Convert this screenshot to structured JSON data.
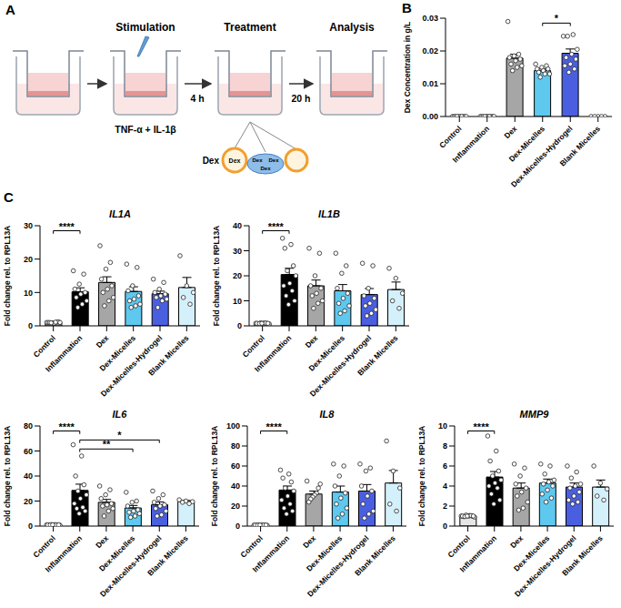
{
  "panel_letters": [
    "A",
    "B",
    "C"
  ],
  "diagram": {
    "steps": [
      "Stimulation",
      "Treatment",
      "Analysis"
    ],
    "stimulus": "TNF-α + IL-1β",
    "durations": [
      "4 h",
      "20 h"
    ],
    "treatments": {
      "free_drug": "Dex",
      "micelle_label": "Dex",
      "hydrogel_labels": [
        "Dex",
        "Dex",
        "Dex"
      ]
    }
  },
  "chart_data": [
    {
      "type": "bar",
      "y_label": "Dex Concentration in g/L",
      "categories": [
        "Control",
        "Inflammation",
        "Dex",
        "Dex-Micelles",
        "Dex-Micelles-Hydrogel",
        "Blank Micelles"
      ],
      "values": [
        0,
        0,
        0.0178,
        0.014,
        0.0193,
        0
      ],
      "errors": [
        0,
        0,
        0.0012,
        0.0005,
        0.0013,
        0
      ],
      "points": [
        [
          0,
          0,
          0,
          0,
          0,
          0,
          0,
          0,
          0,
          0
        ],
        [
          0,
          0,
          0,
          0,
          0,
          0,
          0,
          0,
          0,
          0
        ],
        [
          0.029,
          0.019,
          0.0185,
          0.018,
          0.0175,
          0.017,
          0.016,
          0.0155,
          0.015,
          0.014
        ],
        [
          0.016,
          0.0155,
          0.015,
          0.0145,
          0.0145,
          0.014,
          0.0135,
          0.013,
          0.013,
          0.012
        ],
        [
          0.0245,
          0.025,
          0.0245,
          0.0205,
          0.019,
          0.018,
          0.0175,
          0.016,
          0.0155,
          0.0145,
          0.0135
        ],
        [
          0,
          0,
          0,
          0,
          0
        ]
      ],
      "colors": [
        "#e6e6e6",
        "#000000",
        "#a6a6a6",
        "#5ec8ef",
        "#4a5fe0",
        "#d3f0fb"
      ],
      "ylim": [
        0,
        0.03
      ],
      "yticks": [
        {
          "value": 0,
          "label": "0.00"
        },
        {
          "value": 0.01,
          "label": "0.01"
        },
        {
          "value": 0.02,
          "label": "0.02"
        },
        {
          "value": 0.03,
          "label": "0.03"
        }
      ],
      "annotations": [
        {
          "from": "Dex-Micelles",
          "to": "Dex-Micelles-Hydrogel",
          "label": "*"
        }
      ]
    },
    {
      "type": "bar",
      "title": "IL1A",
      "y_label": "Fold change rel. to RPL13A",
      "categories": [
        "Control",
        "Inflammation",
        "Dex",
        "Dex-Micelles",
        "Dex-Micelles-Hydrogel",
        "Blank Micelles"
      ],
      "values": [
        1,
        10.2,
        13,
        10.3,
        9.6,
        11.5
      ],
      "errors": [
        0.1,
        1.2,
        1.7,
        1.4,
        0.8,
        3
      ],
      "points": [
        [
          1,
          1.1,
          0.9,
          1,
          1.2,
          0.8,
          1,
          1,
          1.1,
          0.9
        ],
        [
          16.5,
          15.5,
          12.5,
          11,
          10,
          9.5,
          8.5,
          7.5,
          6.5,
          5.5
        ],
        [
          24,
          19,
          17,
          14,
          12,
          11,
          10,
          8.5,
          7.5,
          6
        ],
        [
          18.5,
          17.5,
          12,
          10.5,
          9,
          8,
          7.5,
          6.5,
          6,
          5.5
        ],
        [
          14,
          13,
          11,
          10,
          9.5,
          9,
          8.5,
          8,
          7.5,
          5.5
        ],
        [
          21,
          12,
          10,
          8.5,
          6.5
        ]
      ],
      "colors": [
        "#e6e6e6",
        "#000000",
        "#a6a6a6",
        "#5ec8ef",
        "#4a5fe0",
        "#d3f0fb"
      ],
      "ylim": [
        0,
        30
      ],
      "yticks": [
        0,
        10,
        20,
        30
      ],
      "annotations": [
        {
          "from": "Control",
          "to": "Inflammation",
          "label": "****"
        }
      ]
    },
    {
      "type": "bar",
      "title": "IL1B",
      "y_label": "Fold change rel. to RPL13A",
      "categories": [
        "Control",
        "Inflammation",
        "Dex",
        "Dex-Micelles",
        "Dex-Micelles-Hydrogel",
        "Blank Micelles"
      ],
      "values": [
        1,
        20.5,
        16,
        14,
        12.5,
        14.5
      ],
      "errors": [
        0.1,
        2.5,
        2.3,
        2.5,
        2.4,
        3
      ],
      "points": [
        [
          1,
          1.1,
          0.9,
          1,
          1.2,
          0.8,
          1,
          1,
          1.1,
          0.9,
          1,
          1
        ],
        [
          35,
          32.5,
          31,
          24,
          22,
          20,
          17,
          16,
          14,
          12,
          10,
          8.5
        ],
        [
          31,
          29,
          20,
          16,
          15,
          13,
          12,
          10,
          9,
          7
        ],
        [
          29,
          24,
          21,
          15,
          13,
          11,
          9,
          8,
          6,
          5
        ],
        [
          25,
          24,
          15,
          12,
          11,
          9,
          8,
          6.5,
          5,
          4
        ],
        [
          23,
          19,
          13,
          10,
          7
        ]
      ],
      "colors": [
        "#e6e6e6",
        "#000000",
        "#a6a6a6",
        "#5ec8ef",
        "#4a5fe0",
        "#d3f0fb"
      ],
      "ylim": [
        0,
        40
      ],
      "yticks": [
        0,
        10,
        20,
        30,
        40
      ],
      "annotations": [
        {
          "from": "Control",
          "to": "Inflammation",
          "label": "****"
        }
      ]
    },
    {
      "type": "bar",
      "title": "IL6",
      "y_label": "Fold change rel. to RPL13A",
      "categories": [
        "Control",
        "Inflammation",
        "Dex",
        "Dex-Micelles",
        "Dex-Micelles-Hydrogel",
        "Blank Micelles"
      ],
      "values": [
        1,
        28.5,
        19,
        14.5,
        17,
        19.5
      ],
      "errors": [
        0.1,
        5,
        2.3,
        2,
        2.3,
        1
      ],
      "points": [
        [
          1,
          1.1,
          0.9,
          1,
          1.2,
          0.8,
          1,
          1,
          1.1,
          0.9,
          1,
          1
        ],
        [
          65,
          56,
          40,
          33,
          28,
          25,
          22,
          18,
          15,
          14,
          12,
          10
        ],
        [
          32,
          29,
          25,
          22,
          18,
          17,
          16,
          14,
          12,
          8
        ],
        [
          27,
          20,
          19,
          16,
          13,
          12,
          11,
          10,
          8,
          7
        ],
        [
          28,
          25,
          22,
          19,
          17,
          16,
          14,
          12,
          9,
          8
        ],
        [
          21,
          20,
          19.5,
          19,
          18
        ]
      ],
      "colors": [
        "#e6e6e6",
        "#000000",
        "#a6a6a6",
        "#5ec8ef",
        "#4a5fe0",
        "#d3f0fb"
      ],
      "ylim": [
        0,
        80
      ],
      "yticks": [
        0,
        20,
        40,
        60,
        80
      ],
      "annotations": [
        {
          "from": "Control",
          "to": "Inflammation",
          "label": "****"
        },
        {
          "from": "Inflammation",
          "to": "Dex-Micelles-Hydrogel",
          "label": "*"
        },
        {
          "from": "Inflammation",
          "to": "Dex-Micelles",
          "label": "**"
        }
      ]
    },
    {
      "type": "bar",
      "title": "IL8",
      "y_label": "Fold change rel. to RPL13A",
      "categories": [
        "Control",
        "Inflammation",
        "Dex",
        "Dex-Micelles",
        "Dex-Micelles-Hydrogel",
        "Blank Micelles"
      ],
      "values": [
        1,
        36,
        32,
        34,
        35,
        43
      ],
      "errors": [
        0.1,
        4,
        3,
        6,
        6.5,
        12.5
      ],
      "points": [
        [
          1,
          1.1,
          0.9,
          1,
          1.2,
          0.8,
          1,
          1,
          1.1,
          0.9,
          1,
          1
        ],
        [
          56,
          52,
          48,
          44,
          38,
          35,
          30,
          26,
          22,
          18,
          15,
          12
        ],
        [
          45,
          42,
          38,
          33,
          31,
          29,
          27,
          24
        ],
        [
          62,
          60,
          50,
          40,
          33,
          28,
          22,
          18,
          12,
          8
        ],
        [
          62,
          58,
          55,
          40,
          35,
          30,
          22,
          15,
          12,
          8
        ],
        [
          85,
          55,
          38,
          22,
          15
        ]
      ],
      "colors": [
        "#e6e6e6",
        "#000000",
        "#a6a6a6",
        "#5ec8ef",
        "#4a5fe0",
        "#d3f0fb"
      ],
      "ylim": [
        0,
        100
      ],
      "yticks": [
        0,
        20,
        40,
        60,
        80,
        100
      ],
      "annotations": [
        {
          "from": "Control",
          "to": "Inflammation",
          "label": "****"
        }
      ]
    },
    {
      "type": "bar",
      "title": "MMP9",
      "y_label": "Fold change rel. to RPL13A",
      "categories": [
        "Control",
        "Inflammation",
        "Dex",
        "Dex-Micelles",
        "Dex-Micelles-Hydrogel",
        "Blank Micelles"
      ],
      "values": [
        1,
        4.9,
        3.8,
        4.3,
        3.9,
        3.9
      ],
      "errors": [
        0.05,
        0.55,
        0.5,
        0.4,
        0.4,
        0.7
      ],
      "points": [
        [
          1,
          1.05,
          0.95,
          1,
          1.1,
          0.9,
          1,
          1,
          1.05,
          0.95,
          1,
          1
        ],
        [
          9,
          7.5,
          6.5,
          5.5,
          5,
          4.6,
          4.3,
          4,
          3.8,
          3.2,
          2.6,
          2.2
        ],
        [
          6.2,
          5.8,
          5,
          4.2,
          3.8,
          3.4,
          3,
          2.4,
          1.8,
          1.6
        ],
        [
          6.2,
          6,
          5.2,
          4.6,
          4.4,
          4.2,
          4,
          3.6,
          3.2,
          2.8,
          2.4
        ],
        [
          6,
          5.4,
          4.8,
          4.2,
          4,
          3.8,
          3.4,
          3,
          2.6,
          2.4,
          2.2
        ],
        [
          6,
          4.3,
          3.7,
          3,
          2.6
        ]
      ],
      "colors": [
        "#e6e6e6",
        "#000000",
        "#a6a6a6",
        "#5ec8ef",
        "#4a5fe0",
        "#d3f0fb"
      ],
      "ylim": [
        0,
        10
      ],
      "yticks": [
        0,
        2,
        4,
        6,
        8,
        10
      ],
      "annotations": [
        {
          "from": "Control",
          "to": "Inflammation",
          "label": "****"
        }
      ]
    }
  ]
}
